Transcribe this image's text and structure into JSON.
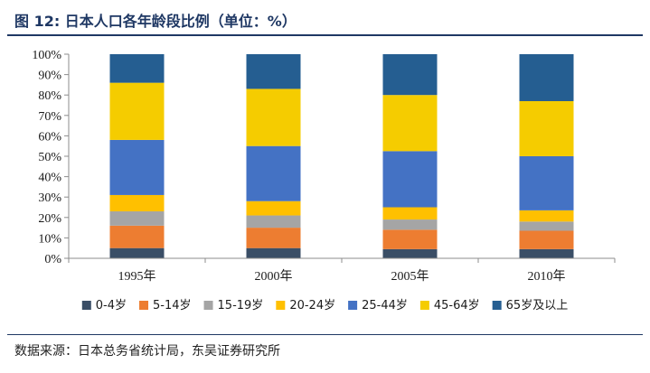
{
  "header": {
    "title": "图 12:  日本人口各年龄段比例（单位：%）"
  },
  "footer": {
    "source": "数据来源：日本总务省统计局，东吴证券研究所"
  },
  "chart_data": {
    "type": "bar",
    "stacked": true,
    "title": "",
    "xlabel": "",
    "ylabel": "",
    "ylim": [
      0,
      100
    ],
    "y_ticks": [
      "0%",
      "10%",
      "20%",
      "30%",
      "40%",
      "50%",
      "60%",
      "70%",
      "80%",
      "90%",
      "100%"
    ],
    "categories": [
      "1995年",
      "2000年",
      "2005年",
      "2010年"
    ],
    "grid": false,
    "legend_position": "bottom",
    "series": [
      {
        "name": "0-4岁",
        "color": "#3a4e66",
        "values": [
          5,
          5,
          4.5,
          4.5
        ]
      },
      {
        "name": "5-14岁",
        "color": "#ed7d31",
        "values": [
          11,
          10,
          9.5,
          9
        ]
      },
      {
        "name": "15-19岁",
        "color": "#a5a5a5",
        "values": [
          7,
          6,
          5,
          4.5
        ]
      },
      {
        "name": "20-24岁",
        "color": "#ffc000",
        "values": [
          8,
          7,
          6,
          5.5
        ]
      },
      {
        "name": "25-44岁",
        "color": "#4472c4",
        "values": [
          27,
          27,
          27.5,
          26.5
        ]
      },
      {
        "name": "45-64岁",
        "color": "#f5cc00",
        "values": [
          28,
          28,
          27.5,
          27
        ]
      },
      {
        "name": "65岁及以上",
        "color": "#255e91",
        "values": [
          14,
          17,
          20,
          23
        ]
      }
    ]
  }
}
